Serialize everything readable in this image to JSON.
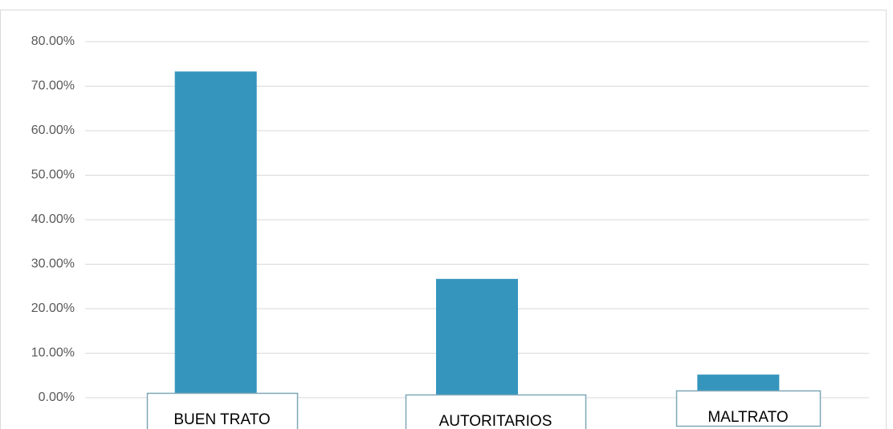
{
  "chart_data": {
    "type": "bar",
    "categories": [
      "BUEN TRATO",
      "AUTORITARIOS",
      "MALTRATO"
    ],
    "values": [
      73.3,
      26.7,
      5.2
    ],
    "color": "#3595bd",
    "ylim": [
      0,
      80
    ],
    "yticks": [
      {
        "value": 0,
        "label": "0.00%"
      },
      {
        "value": 10,
        "label": "10.00%"
      },
      {
        "value": 20,
        "label": "20.00%"
      },
      {
        "value": 30,
        "label": "30.00%"
      },
      {
        "value": 40,
        "label": "40.00%"
      },
      {
        "value": 50,
        "label": "50.00%"
      },
      {
        "value": 60,
        "label": "60.00%"
      },
      {
        "value": 70,
        "label": "70.00%"
      },
      {
        "value": 80,
        "label": "80.00%"
      }
    ],
    "grid": true
  }
}
